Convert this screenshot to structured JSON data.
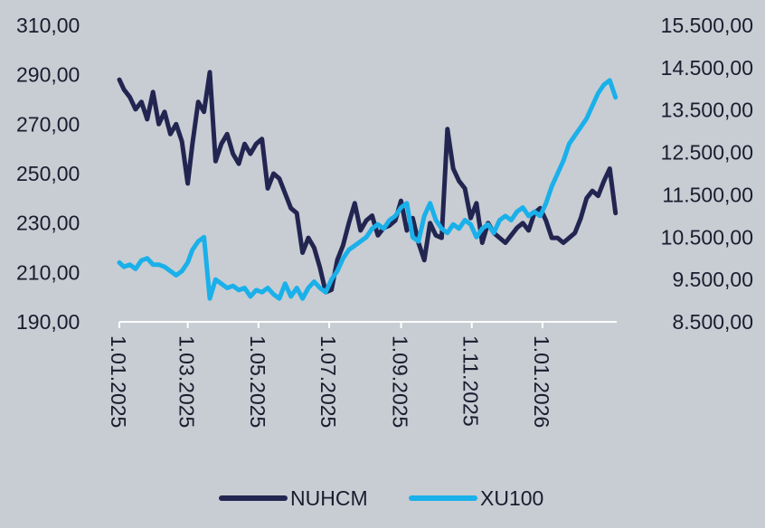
{
  "chart_data": {
    "type": "line",
    "title": "",
    "xlabel": "",
    "ylabel_left": "",
    "ylabel_right": "",
    "x_tick_labels": [
      "1.01.2025",
      "1.03.2025",
      "1.05.2025",
      "1.07.2025",
      "1.09.2025",
      "1.11.2025",
      "1.01.2026"
    ],
    "x_tick_dates": [
      "2025-01-01",
      "2025-03-01",
      "2025-05-01",
      "2025-07-01",
      "2025-09-01",
      "2025-11-01",
      "2026-01-01"
    ],
    "x_range": [
      "2025-01-01",
      "2026-03-06"
    ],
    "y_left": {
      "range": [
        190,
        310
      ],
      "ticks": [
        190,
        210,
        230,
        250,
        270,
        290,
        310
      ],
      "tick_labels": [
        "190,00",
        "210,00",
        "230,00",
        "250,00",
        "270,00",
        "290,00",
        "310,00"
      ]
    },
    "y_right": {
      "range": [
        8500,
        15500
      ],
      "ticks": [
        8500,
        9500,
        10500,
        11500,
        12500,
        13500,
        14500,
        15500
      ],
      "tick_labels": [
        "8.500,00",
        "9.500,00",
        "10.500,00",
        "11.500,00",
        "12.500,00",
        "13.500,00",
        "14.500,00",
        "15.500,00"
      ]
    },
    "grid": false,
    "legend_position": "bottom",
    "series": [
      {
        "name": "NUHCM",
        "axis": "left",
        "color": "#232551",
        "x": [
          "2025-01-01",
          "2025-01-05",
          "2025-01-10",
          "2025-01-15",
          "2025-01-20",
          "2025-01-25",
          "2025-01-30",
          "2025-02-04",
          "2025-02-09",
          "2025-02-14",
          "2025-02-19",
          "2025-02-24",
          "2025-03-01",
          "2025-03-05",
          "2025-03-10",
          "2025-03-15",
          "2025-03-20",
          "2025-03-25",
          "2025-03-30",
          "2025-04-04",
          "2025-04-09",
          "2025-04-14",
          "2025-04-19",
          "2025-04-24",
          "2025-04-29",
          "2025-05-04",
          "2025-05-09",
          "2025-05-14",
          "2025-05-19",
          "2025-05-24",
          "2025-05-29",
          "2025-06-03",
          "2025-06-08",
          "2025-06-13",
          "2025-06-18",
          "2025-06-23",
          "2025-06-28",
          "2025-07-03",
          "2025-07-08",
          "2025-07-13",
          "2025-07-18",
          "2025-07-23",
          "2025-07-28",
          "2025-08-02",
          "2025-08-07",
          "2025-08-12",
          "2025-08-17",
          "2025-08-22",
          "2025-08-27",
          "2025-09-01",
          "2025-09-06",
          "2025-09-11",
          "2025-09-16",
          "2025-09-21",
          "2025-09-26",
          "2025-10-01",
          "2025-10-06",
          "2025-10-11",
          "2025-10-16",
          "2025-10-21",
          "2025-10-26",
          "2025-10-31",
          "2025-11-05",
          "2025-11-10",
          "2025-11-15",
          "2025-11-20",
          "2025-11-25",
          "2025-11-30",
          "2025-12-05",
          "2025-12-10",
          "2025-12-15",
          "2025-12-20",
          "2025-12-25",
          "2025-12-30",
          "2026-01-04",
          "2026-01-09",
          "2026-01-14",
          "2026-01-19",
          "2026-01-24",
          "2026-01-29",
          "2026-02-03",
          "2026-02-08",
          "2026-02-13",
          "2026-02-18",
          "2026-02-23",
          "2026-02-28",
          "2026-03-05"
        ],
        "values": [
          288,
          284,
          281,
          276,
          279,
          272,
          283,
          270,
          275,
          266,
          270,
          263,
          246,
          262,
          279,
          275,
          291,
          255,
          262,
          266,
          258,
          254,
          262,
          258,
          262,
          264,
          244,
          250,
          248,
          242,
          236,
          234,
          218,
          224,
          220,
          212,
          202,
          203,
          215,
          221,
          230,
          238,
          227,
          231,
          233,
          225,
          228,
          229,
          231,
          239,
          227,
          232,
          222,
          215,
          230,
          225,
          224,
          268,
          252,
          247,
          244,
          232,
          238,
          222,
          230,
          226,
          224,
          222,
          225,
          228,
          230,
          227,
          234,
          236,
          231,
          224,
          224,
          222,
          224,
          226,
          232,
          240,
          243,
          241,
          247,
          252,
          234
        ]
      },
      {
        "name": "XU100",
        "axis": "right",
        "color": "#1ab0ea",
        "x": [
          "2025-01-01",
          "2025-01-05",
          "2025-01-10",
          "2025-01-15",
          "2025-01-20",
          "2025-01-25",
          "2025-01-30",
          "2025-02-04",
          "2025-02-09",
          "2025-02-14",
          "2025-02-19",
          "2025-02-24",
          "2025-03-01",
          "2025-03-05",
          "2025-03-10",
          "2025-03-15",
          "2025-03-20",
          "2025-03-25",
          "2025-03-30",
          "2025-04-04",
          "2025-04-09",
          "2025-04-14",
          "2025-04-19",
          "2025-04-24",
          "2025-04-29",
          "2025-05-04",
          "2025-05-09",
          "2025-05-14",
          "2025-05-19",
          "2025-05-24",
          "2025-05-29",
          "2025-06-03",
          "2025-06-08",
          "2025-06-13",
          "2025-06-18",
          "2025-06-23",
          "2025-06-28",
          "2025-07-03",
          "2025-07-08",
          "2025-07-13",
          "2025-07-18",
          "2025-07-23",
          "2025-07-28",
          "2025-08-02",
          "2025-08-07",
          "2025-08-12",
          "2025-08-17",
          "2025-08-22",
          "2025-08-27",
          "2025-09-01",
          "2025-09-06",
          "2025-09-11",
          "2025-09-16",
          "2025-09-21",
          "2025-09-26",
          "2025-10-01",
          "2025-10-06",
          "2025-10-11",
          "2025-10-16",
          "2025-10-21",
          "2025-10-26",
          "2025-10-31",
          "2025-11-05",
          "2025-11-10",
          "2025-11-15",
          "2025-11-20",
          "2025-11-25",
          "2025-11-30",
          "2025-12-05",
          "2025-12-10",
          "2025-12-15",
          "2025-12-20",
          "2025-12-25",
          "2025-12-30",
          "2026-01-04",
          "2026-01-09",
          "2026-01-14",
          "2026-01-19",
          "2026-01-24",
          "2026-01-29",
          "2026-02-03",
          "2026-02-08",
          "2026-02-13",
          "2026-02-18",
          "2026-02-23",
          "2026-02-28",
          "2026-03-05"
        ],
        "values": [
          9900,
          9800,
          9850,
          9750,
          9950,
          10000,
          9850,
          9850,
          9800,
          9700,
          9600,
          9700,
          9900,
          10200,
          10400,
          10500,
          9050,
          9500,
          9400,
          9300,
          9350,
          9250,
          9300,
          9100,
          9250,
          9200,
          9300,
          9150,
          9050,
          9400,
          9100,
          9300,
          9050,
          9300,
          9450,
          9300,
          9200,
          9500,
          9700,
          10000,
          10200,
          10300,
          10400,
          10500,
          10700,
          10800,
          10700,
          10900,
          11000,
          11200,
          11300,
          10500,
          10400,
          11000,
          11300,
          10900,
          10700,
          10600,
          10800,
          10700,
          10900,
          10800,
          10500,
          10700,
          10800,
          10600,
          10900,
          11000,
          10900,
          11100,
          11200,
          11000,
          11100,
          11000,
          11300,
          11700,
          12000,
          12300,
          12700,
          12900,
          13100,
          13300,
          13600,
          13900,
          14100,
          14200,
          13800
        ]
      }
    ]
  }
}
